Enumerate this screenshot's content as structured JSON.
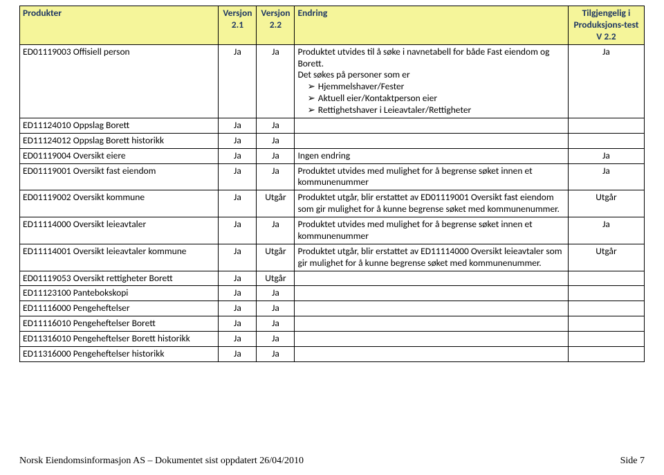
{
  "columns": {
    "produkter": "Produkter",
    "versjon21": "Versjon 2.1",
    "versjon22": "Versjon 2.2",
    "endring": "Endring",
    "tilgjengelig": "Tilgjengelig i Produksjons-test V 2.2"
  },
  "rows": [
    {
      "prod": "ED01119003 Offisiell person",
      "v1": "Ja",
      "v2": "Ja",
      "endr_intro": "Produktet utvides til å søke i navnetabell for både Fast eiendom og Borett.",
      "endr_after_intro": "Det søkes på personer som er",
      "bullets": [
        "Hjemmelshaver/Fester",
        "Aktuell eier/Kontaktperson eier",
        "Rettighetshaver i Leieavtaler/Rettigheter"
      ],
      "tilg": "Ja"
    },
    {
      "prod": "ED11124010 Oppslag Borett",
      "v1": "Ja",
      "v2": "Ja",
      "endr": "",
      "tilg": ""
    },
    {
      "prod": "ED11124012 Oppslag Borett historikk",
      "v1": "Ja",
      "v2": "Ja",
      "endr": "",
      "tilg": ""
    },
    {
      "prod": "ED01119004 Oversikt eiere",
      "v1": "Ja",
      "v2": "Ja",
      "endr": "Ingen endring",
      "tilg": "Ja"
    },
    {
      "prod": "ED01119001 Oversikt fast eiendom",
      "v1": "Ja",
      "v2": "Ja",
      "endr": "Produktet utvides med mulighet for å begrense søket innen et kommunenummer",
      "tilg": "Ja"
    },
    {
      "prod": "ED01119002 Oversikt kommune",
      "v1": "Ja",
      "v2": "Utgår",
      "endr": "Produktet utgår, blir erstattet av ED01119001 Oversikt fast eiendom som gir mulighet for å kunne begrense søket med kommunenummer.",
      "tilg": "Utgår"
    },
    {
      "prod": "ED11114000 Oversikt leieavtaler",
      "v1": "Ja",
      "v2": "Ja",
      "endr": "Produktet utvides med mulighet for å begrense søket innen et kommunenummer",
      "tilg": "Ja"
    },
    {
      "prod": "ED11114001 Oversikt leieavtaler kommune",
      "v1": "Ja",
      "v2": "Utgår",
      "endr": "Produktet utgår, blir erstattet av ED11114000 Oversikt leieavtaler som gir mulighet for å kunne begrense søket med kommunenummer.",
      "tilg": "Utgår"
    },
    {
      "prod": "ED01119053 Oversikt rettigheter Borett",
      "v1": "Ja",
      "v2": "Utgår",
      "endr": "",
      "tilg": ""
    },
    {
      "prod": "ED11123100 Pantebokskopi",
      "v1": "Ja",
      "v2": "Ja",
      "endr": "",
      "tilg": ""
    },
    {
      "prod": "ED11116000 Pengeheftelser",
      "v1": "Ja",
      "v2": "Ja",
      "endr": "",
      "tilg": ""
    },
    {
      "prod": "ED11116010 Pengeheftelser Borett",
      "v1": "Ja",
      "v2": "Ja",
      "endr": "",
      "tilg": ""
    },
    {
      "prod": "ED11316010 Pengeheftelser Borett historikk",
      "v1": "Ja",
      "v2": "Ja",
      "endr": "",
      "tilg": ""
    },
    {
      "prod": "ED11316000 Pengeheftelser historikk",
      "v1": "Ja",
      "v2": "Ja",
      "endr": "",
      "tilg": ""
    }
  ],
  "footer": {
    "left": "Norsk Eiendomsinformasjon AS – Dokumentet sist oppdatert 26/04/2010",
    "right": "Side 7"
  }
}
